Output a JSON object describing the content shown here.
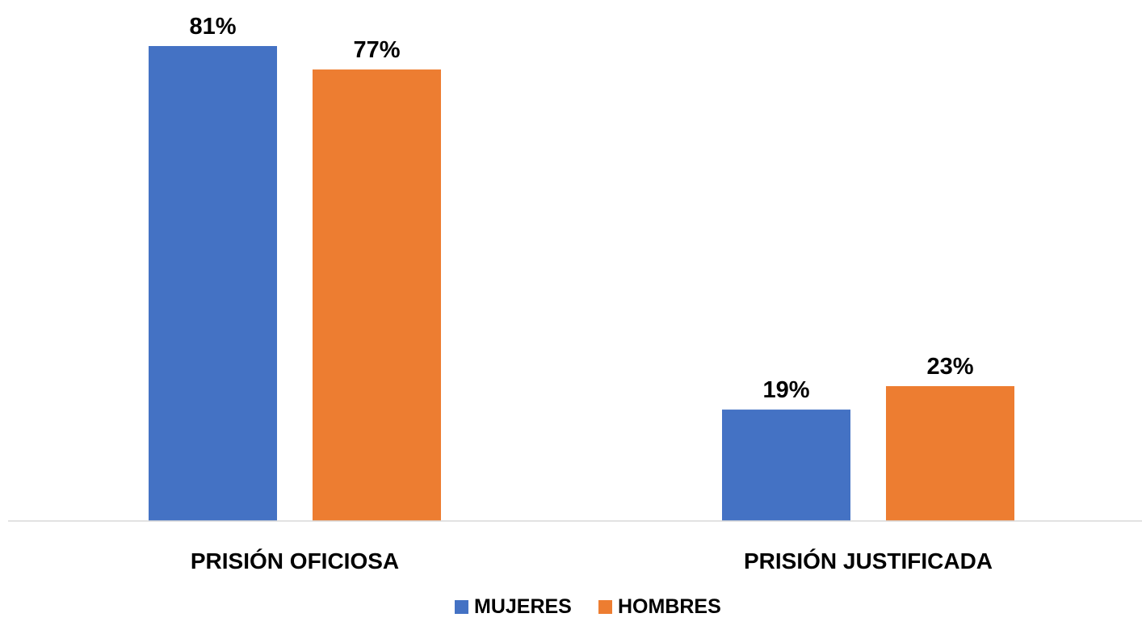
{
  "chart_data": {
    "type": "bar",
    "categories": [
      "PRISIÓN OFICIOSA",
      "PRISIÓN JUSTIFICADA"
    ],
    "series": [
      {
        "name": "MUJERES",
        "values": [
          81,
          19
        ],
        "labels": [
          "81%",
          "19%"
        ],
        "color": "#4472C4"
      },
      {
        "name": "HOMBRES",
        "values": [
          77,
          23
        ],
        "labels": [
          "77%",
          "23%"
        ],
        "color": "#ED7D31"
      }
    ],
    "unit": "%",
    "ylim": [
      0,
      100
    ],
    "grid": false,
    "legend_position": "bottom"
  }
}
